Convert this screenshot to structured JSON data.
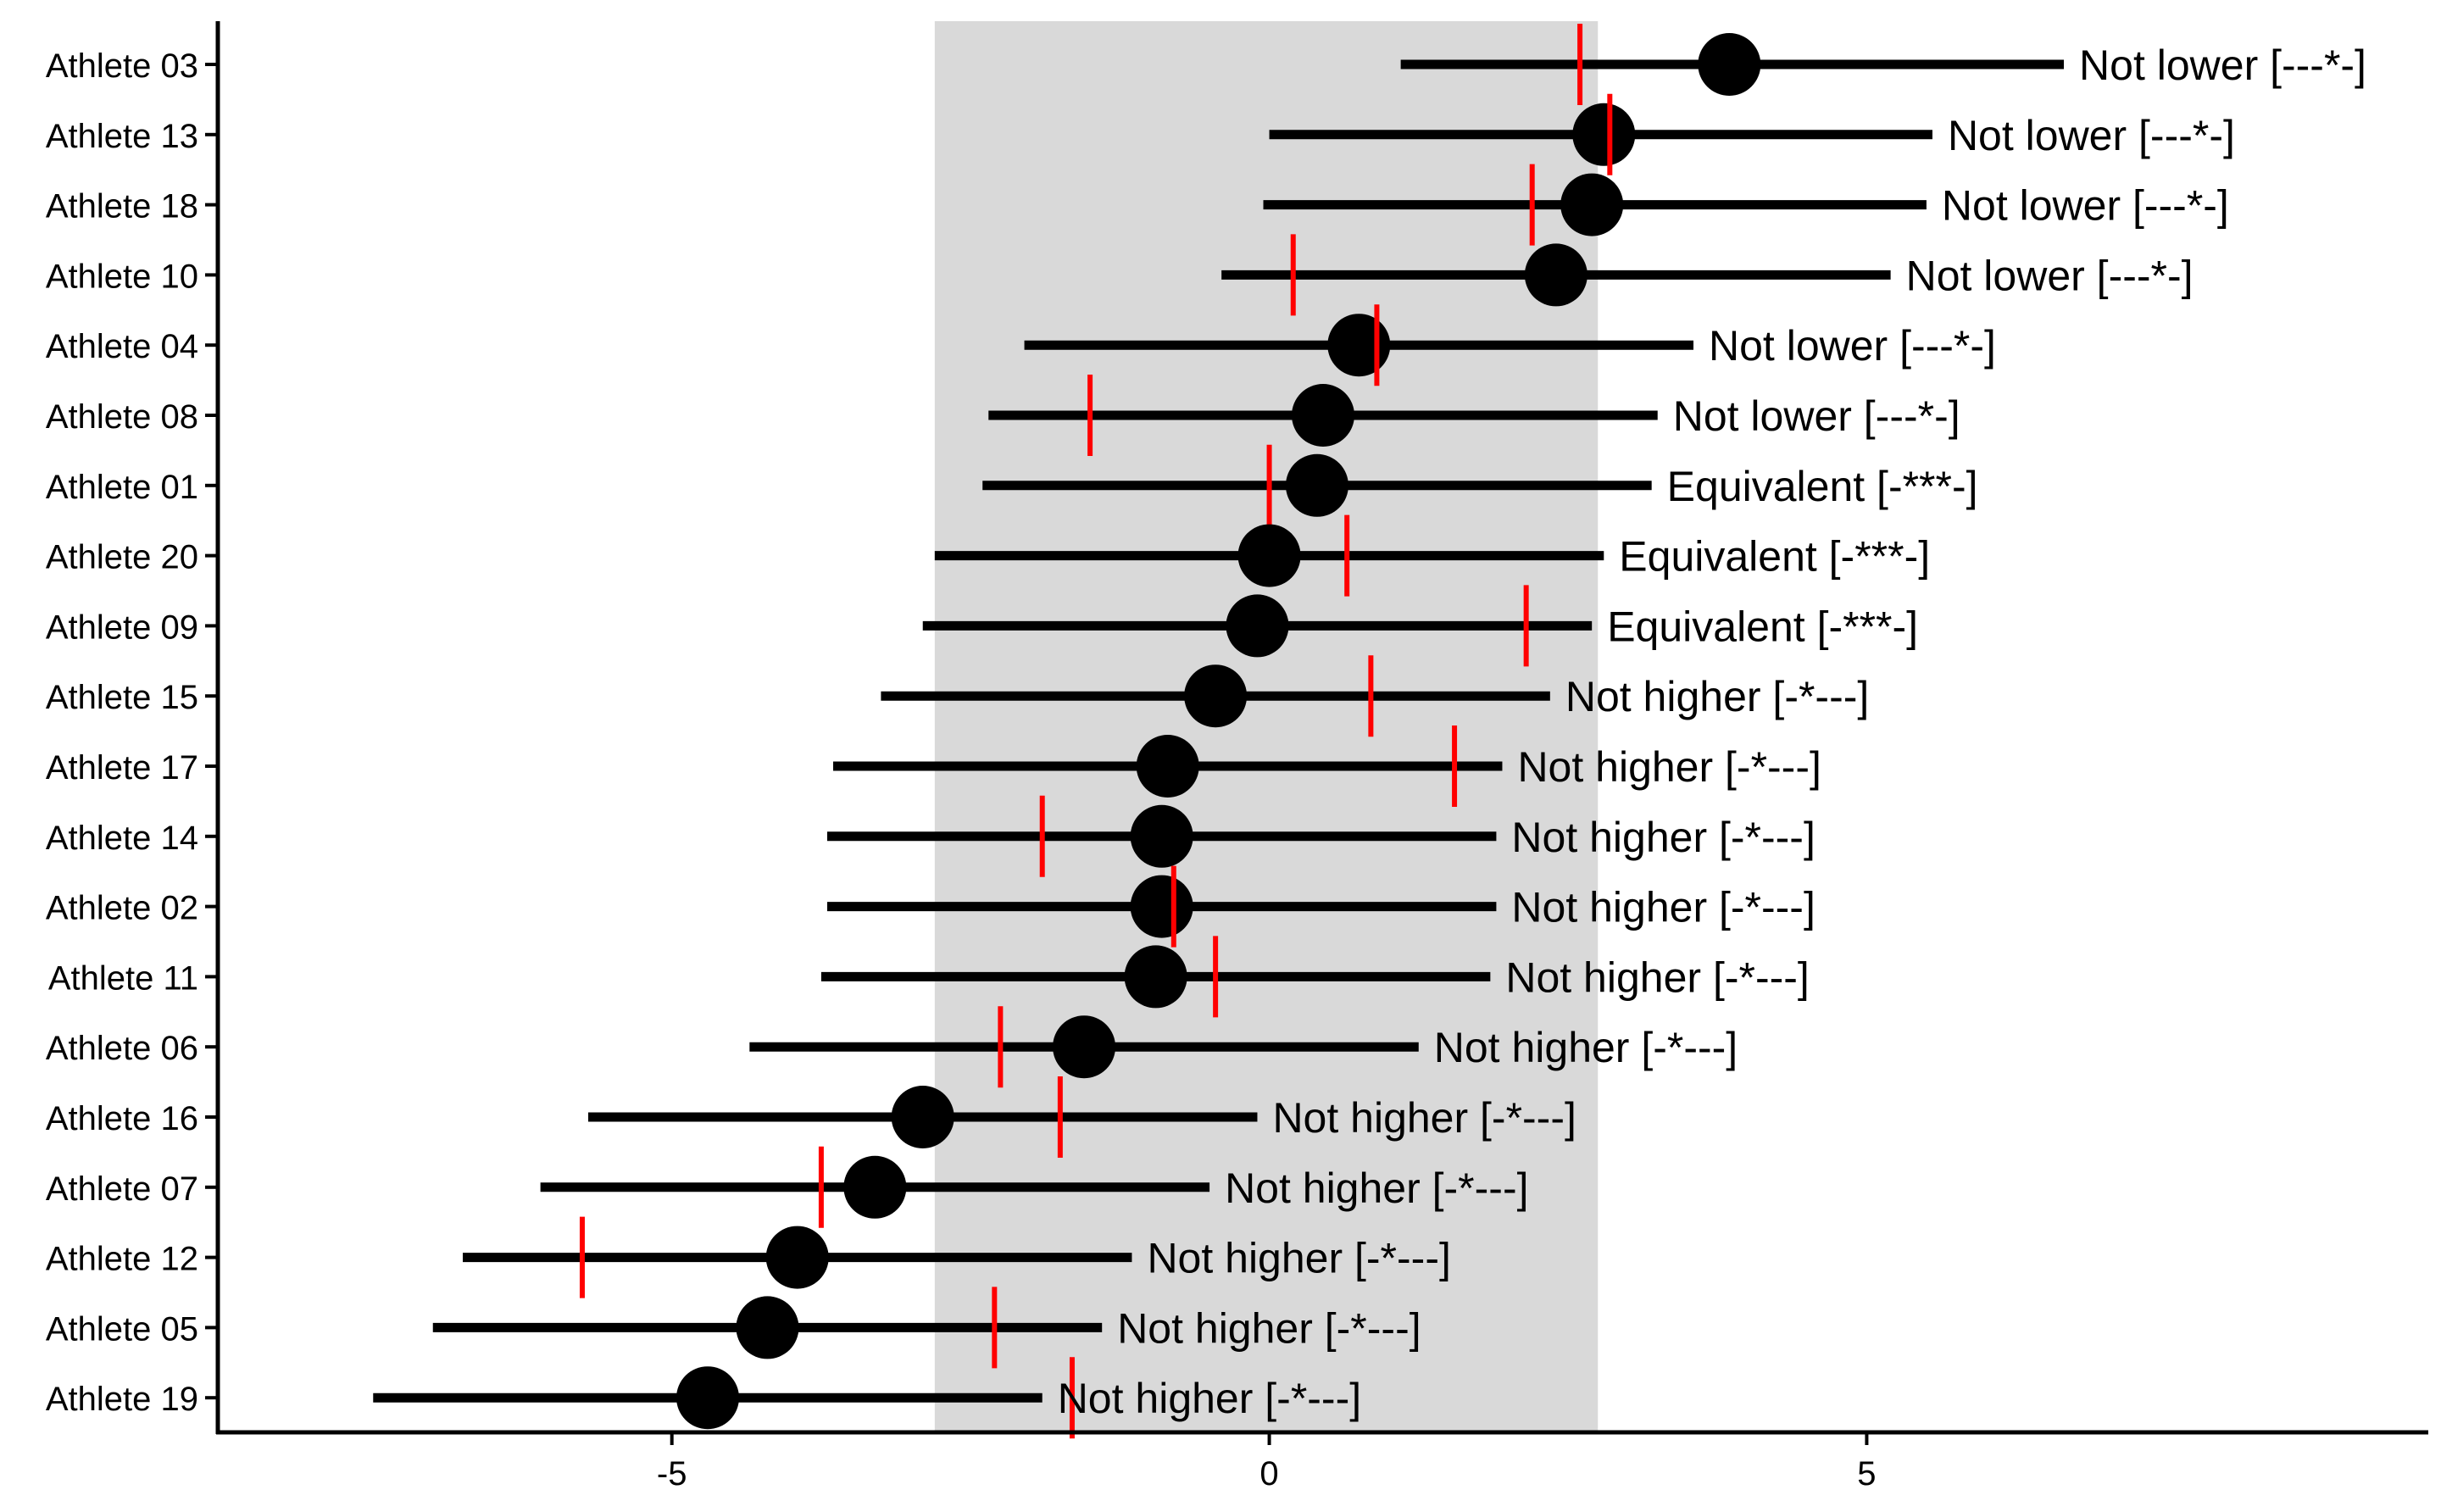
{
  "colors": {
    "background": "#ffffff",
    "band": "#d9d9d9",
    "interval": "#000000",
    "point": "#000000",
    "marker": "#ff0000",
    "axis": "#000000",
    "text": "#000000"
  },
  "chart_data": {
    "type": "scatter",
    "subtype": "forest-plot",
    "title": "",
    "xlabel": "",
    "ylabel": "",
    "xlim": [
      -8.8,
      9.7
    ],
    "x_ticks": [
      -5,
      0,
      5
    ],
    "x_tick_labels": [
      "-5",
      "0",
      "5"
    ],
    "grid": false,
    "legend": "none",
    "equivalence_band": [
      -2.8,
      2.75
    ],
    "rows": [
      {
        "label": "Athlete 03",
        "estimate": 3.85,
        "lower": 1.1,
        "upper": 6.65,
        "marker": 2.6,
        "annotation": "Not lower [---*-]"
      },
      {
        "label": "Athlete 13",
        "estimate": 2.8,
        "lower": 0.0,
        "upper": 5.55,
        "marker": 2.85,
        "annotation": "Not lower [---*-]"
      },
      {
        "label": "Athlete 18",
        "estimate": 2.7,
        "lower": -0.05,
        "upper": 5.5,
        "marker": 2.2,
        "annotation": "Not lower [---*-]"
      },
      {
        "label": "Athlete 10",
        "estimate": 2.4,
        "lower": -0.4,
        "upper": 5.2,
        "marker": 0.2,
        "annotation": "Not lower [---*-]"
      },
      {
        "label": "Athlete 04",
        "estimate": 0.75,
        "lower": -2.05,
        "upper": 3.55,
        "marker": 0.9,
        "annotation": "Not lower [---*-]"
      },
      {
        "label": "Athlete 08",
        "estimate": 0.45,
        "lower": -2.35,
        "upper": 3.25,
        "marker": -1.5,
        "annotation": "Not lower [---*-]"
      },
      {
        "label": "Athlete 01",
        "estimate": 0.4,
        "lower": -2.4,
        "upper": 3.2,
        "marker": 0.0,
        "annotation": "Equivalent [-***-]"
      },
      {
        "label": "Athlete 20",
        "estimate": 0.0,
        "lower": -2.8,
        "upper": 2.8,
        "marker": 0.65,
        "annotation": "Equivalent [-***-]"
      },
      {
        "label": "Athlete 09",
        "estimate": -0.1,
        "lower": -2.9,
        "upper": 2.7,
        "marker": 2.15,
        "annotation": "Equivalent [-***-]"
      },
      {
        "label": "Athlete 15",
        "estimate": -0.45,
        "lower": -3.25,
        "upper": 2.35,
        "marker": 0.85,
        "annotation": "Not higher [-*---]"
      },
      {
        "label": "Athlete 17",
        "estimate": -0.85,
        "lower": -3.65,
        "upper": 1.95,
        "marker": 1.55,
        "annotation": "Not higher [-*---]"
      },
      {
        "label": "Athlete 14",
        "estimate": -0.9,
        "lower": -3.7,
        "upper": 1.9,
        "marker": -1.9,
        "annotation": "Not higher [-*---]"
      },
      {
        "label": "Athlete 02",
        "estimate": -0.9,
        "lower": -3.7,
        "upper": 1.9,
        "marker": -0.8,
        "annotation": "Not higher [-*---]"
      },
      {
        "label": "Athlete 11",
        "estimate": -0.95,
        "lower": -3.75,
        "upper": 1.85,
        "marker": -0.45,
        "annotation": "Not higher [-*---]"
      },
      {
        "label": "Athlete 06",
        "estimate": -1.55,
        "lower": -4.35,
        "upper": 1.25,
        "marker": -2.25,
        "annotation": "Not higher [-*---]"
      },
      {
        "label": "Athlete 16",
        "estimate": -2.9,
        "lower": -5.7,
        "upper": -0.1,
        "marker": -1.75,
        "annotation": "Not higher [-*---]"
      },
      {
        "label": "Athlete 07",
        "estimate": -3.3,
        "lower": -6.1,
        "upper": -0.5,
        "marker": -3.75,
        "annotation": "Not higher [-*---]"
      },
      {
        "label": "Athlete 12",
        "estimate": -3.95,
        "lower": -6.75,
        "upper": -1.15,
        "marker": -5.75,
        "annotation": "Not higher [-*---]"
      },
      {
        "label": "Athlete 05",
        "estimate": -4.2,
        "lower": -7.0,
        "upper": -1.4,
        "marker": -2.3,
        "annotation": "Not higher [-*---]"
      },
      {
        "label": "Athlete 19",
        "estimate": -4.7,
        "lower": -7.5,
        "upper": -1.9,
        "marker": -1.65,
        "annotation": "Not higher [-*---]"
      }
    ]
  }
}
